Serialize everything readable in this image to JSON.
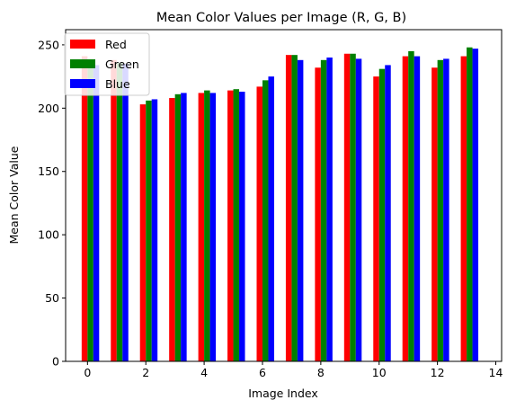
{
  "chart_data": {
    "type": "bar",
    "title": "Mean Color Values per Image (R, G, B)",
    "xlabel": "Image Index",
    "ylabel": "Mean Color Value",
    "xlim": [
      -0.75,
      14.2
    ],
    "ylim": [
      0,
      262
    ],
    "xticks": [
      0,
      2,
      4,
      6,
      8,
      10,
      12,
      14
    ],
    "yticks": [
      0,
      50,
      100,
      150,
      200,
      250
    ],
    "x": [
      0,
      1,
      2,
      3,
      4,
      5,
      6,
      7,
      8,
      9,
      10,
      11,
      12,
      13
    ],
    "bar_width": 0.2,
    "grid": false,
    "legend_position": "upper-left",
    "series": [
      {
        "name": "Red",
        "color": "#ff0000",
        "values": [
          241,
          238,
          203,
          208,
          212,
          214,
          217,
          242,
          232,
          243,
          225,
          241,
          232,
          241
        ]
      },
      {
        "name": "Green",
        "color": "#008000",
        "values": [
          236,
          236,
          206,
          211,
          214,
          215,
          222,
          242,
          238,
          243,
          231,
          245,
          238,
          248
        ]
      },
      {
        "name": "Blue",
        "color": "#0000ff",
        "values": [
          234,
          235,
          207,
          212,
          212,
          213,
          225,
          238,
          240,
          239,
          234,
          241,
          239,
          247
        ]
      }
    ]
  }
}
